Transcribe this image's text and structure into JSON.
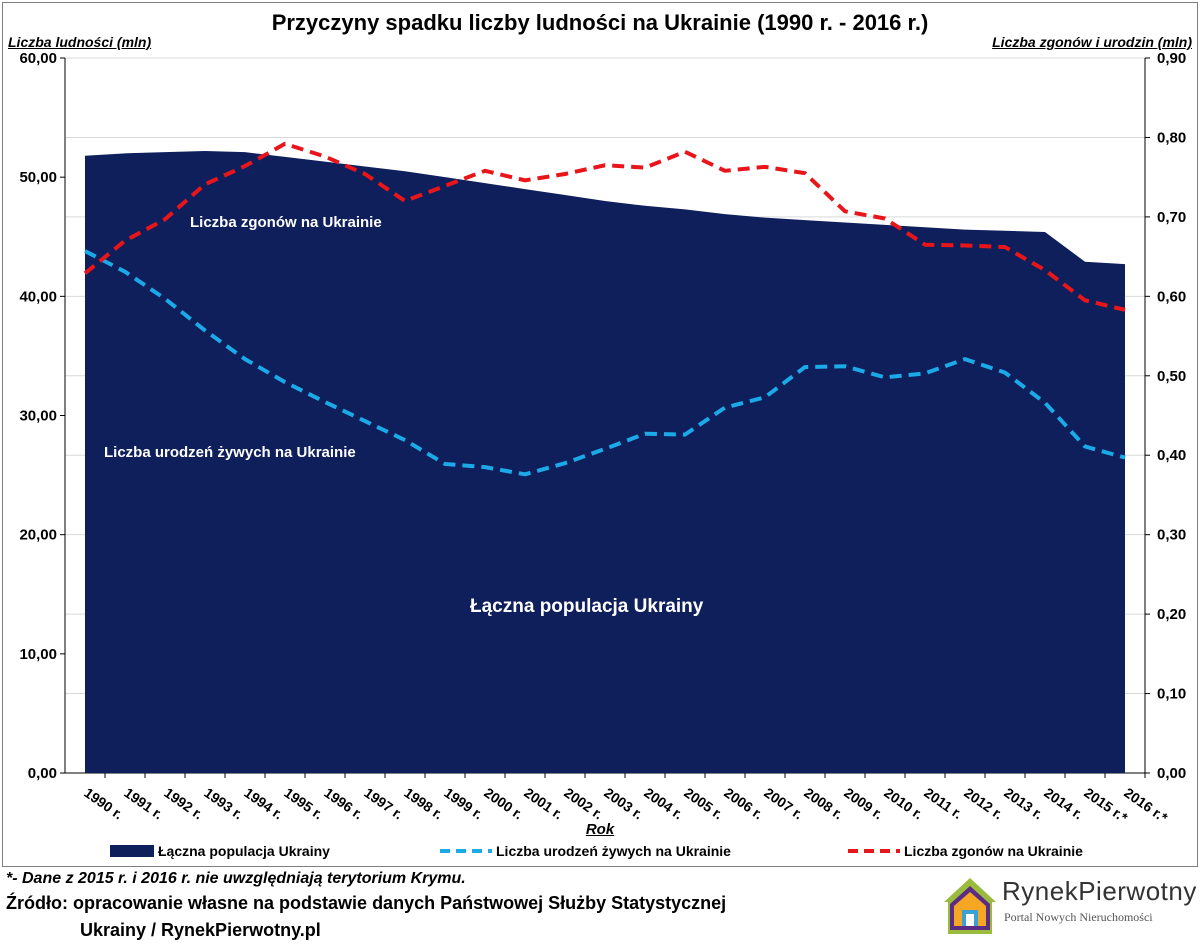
{
  "chart_data": {
    "type": "area",
    "title": "Przyczyny spadku liczby ludności na Ukrainie (1990 r. - 2016 r.)",
    "xlabel": "Rok",
    "ylabel_left": "Liczba ludności (mln)",
    "ylabel_right": "Liczba zgonów i urodzin (mln)",
    "categories": [
      "1990 r.",
      "1991 r.",
      "1992 r.",
      "1993 r.",
      "1994 r.",
      "1995 r.",
      "1996 r.",
      "1997 r.",
      "1998 r.",
      "1999 r.",
      "2000 r.",
      "2001 r.",
      "2002 r.",
      "2003 r.",
      "2004 r.",
      "2005 r.",
      "2006 r.",
      "2007 r.",
      "2008 r.",
      "2009 r.",
      "2010 r.",
      "2011 r.",
      "2012 r.",
      "2013 r.",
      "2014 r.",
      "2015 r.*",
      "2016 r.*"
    ],
    "y_left": {
      "min": 0,
      "max": 60,
      "ticks": [
        "0,00",
        "10,00",
        "20,00",
        "30,00",
        "40,00",
        "50,00",
        "60,00"
      ]
    },
    "y_right": {
      "min": 0,
      "max": 0.9,
      "ticks": [
        "0,00",
        "0,10",
        "0,20",
        "0,30",
        "0,40",
        "0,50",
        "0,60",
        "0,70",
        "0,80",
        "0,90"
      ]
    },
    "grid": true,
    "legend_position": "bottom",
    "series": [
      {
        "name": "Łączna populacja Ukrainy",
        "axis": "left",
        "kind": "area",
        "color": "#0e1f5b",
        "values": [
          51.8,
          52.0,
          52.1,
          52.2,
          52.1,
          51.7,
          51.3,
          50.9,
          50.5,
          50.0,
          49.5,
          49.0,
          48.5,
          48.0,
          47.6,
          47.3,
          46.9,
          46.6,
          46.4,
          46.2,
          46.0,
          45.8,
          45.6,
          45.5,
          45.4,
          42.9,
          42.7
        ]
      },
      {
        "name": "Liczba urodzeń żywych na Ukrainie",
        "axis": "right",
        "kind": "line",
        "color": "#1ba9e8",
        "dash": true,
        "values": [
          0.657,
          0.631,
          0.597,
          0.557,
          0.521,
          0.492,
          0.467,
          0.443,
          0.419,
          0.389,
          0.385,
          0.376,
          0.39,
          0.408,
          0.427,
          0.426,
          0.46,
          0.473,
          0.511,
          0.512,
          0.498,
          0.503,
          0.521,
          0.504,
          0.466,
          0.411,
          0.397
        ]
      },
      {
        "name": "Liczba zgonów na Ukrainie",
        "axis": "right",
        "kind": "line",
        "color": "#e8161b",
        "dash": true,
        "values": [
          0.629,
          0.67,
          0.697,
          0.741,
          0.764,
          0.792,
          0.776,
          0.754,
          0.72,
          0.739,
          0.758,
          0.746,
          0.754,
          0.765,
          0.762,
          0.782,
          0.758,
          0.763,
          0.755,
          0.707,
          0.698,
          0.665,
          0.664,
          0.662,
          0.633,
          0.595,
          0.583
        ]
      }
    ],
    "annotations": [
      {
        "text": "Liczba zgonów na Ukrainie",
        "series": "Liczba zgonów na Ukrainie"
      },
      {
        "text": "Liczba urodzeń żywych na Ukrainie",
        "series": "Liczba urodzeń żywych na Ukrainie"
      },
      {
        "text": "Łączna populacja Ukrainy",
        "series": "Łączna populacja Ukrainy"
      }
    ]
  },
  "footnote": "*- Dane z 2015 r. i 2016 r. nie uwzględniają terytorium Krymu.",
  "source_line1": "Źródło: opracowanie własne na podstawie danych Państwowej Służby Statystycznej",
  "source_line2": "Ukrainy / RynekPierwotny.pl",
  "logo": {
    "brand": "RynekPierwotny",
    "tagline": "Portal Nowych Nieruchomości"
  }
}
